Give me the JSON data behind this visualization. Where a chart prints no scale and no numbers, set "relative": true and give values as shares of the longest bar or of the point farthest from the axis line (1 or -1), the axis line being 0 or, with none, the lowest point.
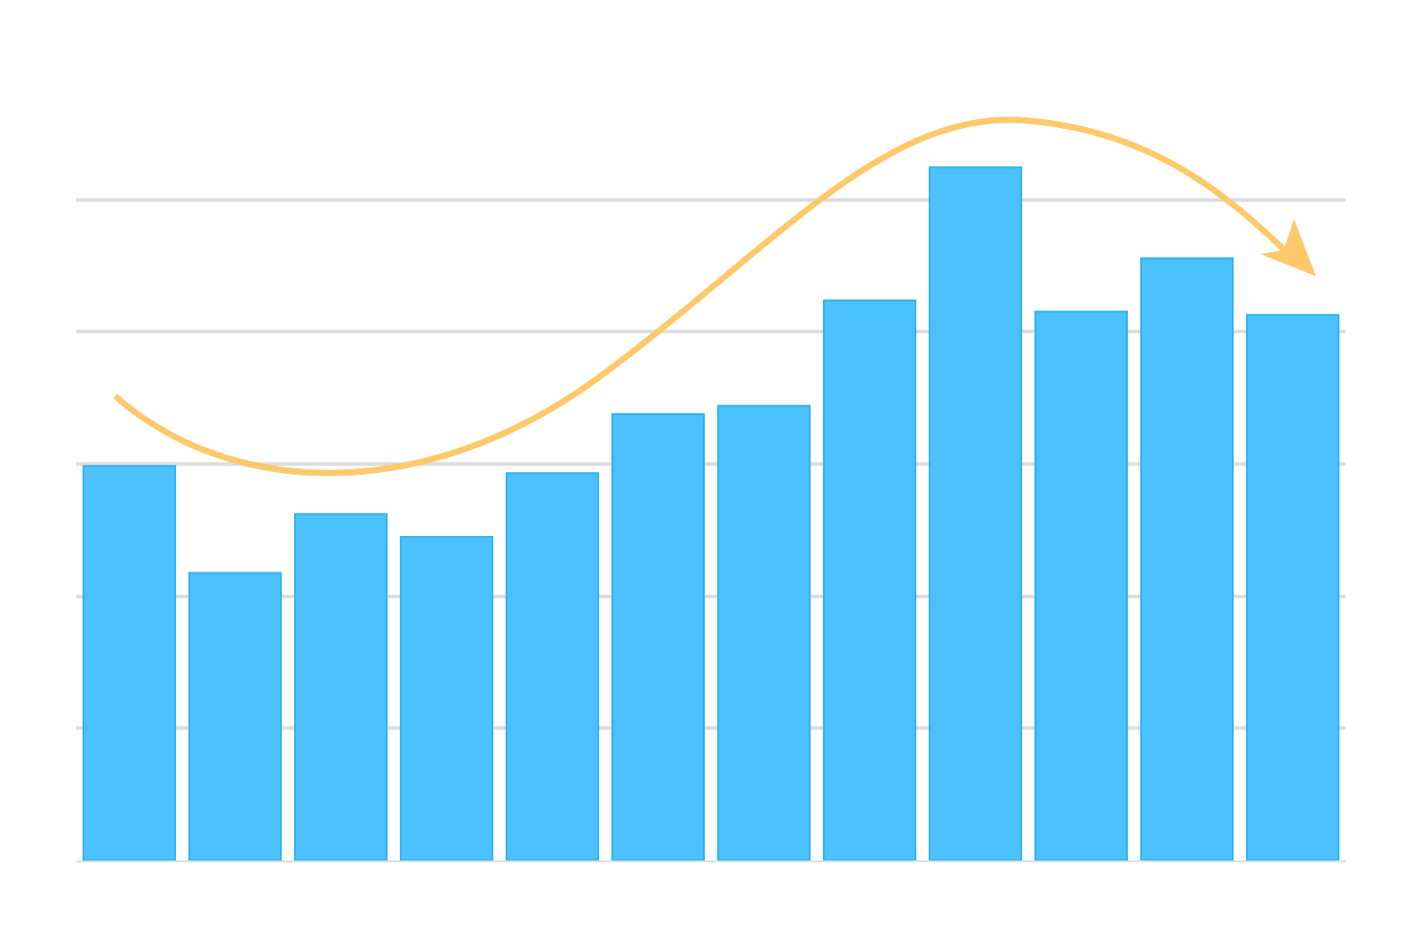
{
  "chart_data": {
    "type": "bar",
    "relative": true,
    "categories": [
      null,
      null,
      null,
      null,
      null,
      null,
      null,
      null,
      null,
      null,
      null,
      null
    ],
    "values": [
      0.569,
      0.415,
      0.5,
      0.467,
      0.559,
      0.644,
      0.656,
      0.808,
      1,
      0.792,
      0.869,
      0.787
    ],
    "color": "#4bc1fe",
    "grid": "y"
  }
}
